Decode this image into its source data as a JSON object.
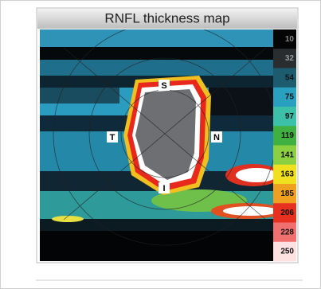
{
  "header": {
    "title": "RNFL thickness map"
  },
  "map": {
    "labels": {
      "superior": "S",
      "temporal": "T",
      "nasal": "N",
      "inferior": "I"
    }
  },
  "colorbar": {
    "labels": [
      "10",
      "32",
      "54",
      "75",
      "97",
      "119",
      "141",
      "163",
      "185",
      "206",
      "228",
      "250"
    ]
  }
}
